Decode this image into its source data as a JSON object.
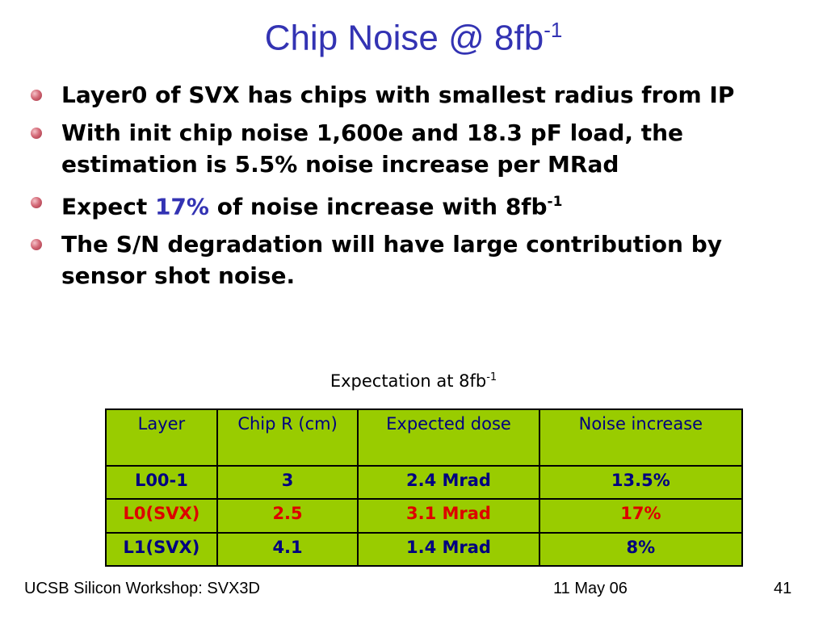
{
  "slide": {
    "title": "Chip Noise @ 8fb",
    "title_sup": "-1",
    "bullets": [
      {
        "text": "Layer0 of SVX has chips with smallest radius from IP"
      },
      {
        "text": "With init chip noise 1,600e and 18.3 pF load, the estimation is 5.5% noise increase per MRad"
      },
      {
        "pre": "Expect ",
        "highlight": "17%",
        "post": " of noise increase with 8fb",
        "sup": "-1"
      },
      {
        "text": "The S/N degradation will have large contribution by sensor shot noise."
      }
    ],
    "table_caption": "Expectation at 8fb",
    "table_caption_sup": "-1",
    "table": {
      "headers": [
        "Layer",
        "Chip R (cm)",
        "Expected dose",
        "Noise increase"
      ],
      "rows": [
        [
          "L00-1",
          "3",
          "2.4 Mrad",
          "13.5%"
        ],
        [
          "L0(SVX)",
          "2.5",
          "3.1 Mrad",
          "17%"
        ],
        [
          "L1(SVX)",
          "4.1",
          "1.4 Mrad",
          "8%"
        ]
      ]
    },
    "footer": {
      "left": "UCSB Silicon Workshop: SVX3D",
      "center": "11 May 06",
      "right": "41"
    }
  },
  "colors": {
    "title": "#3333b3",
    "highlight": "#3333b3",
    "table_bg": "#99cc00",
    "table_text": "#000080",
    "table_highlight_row": "#dd0000"
  }
}
